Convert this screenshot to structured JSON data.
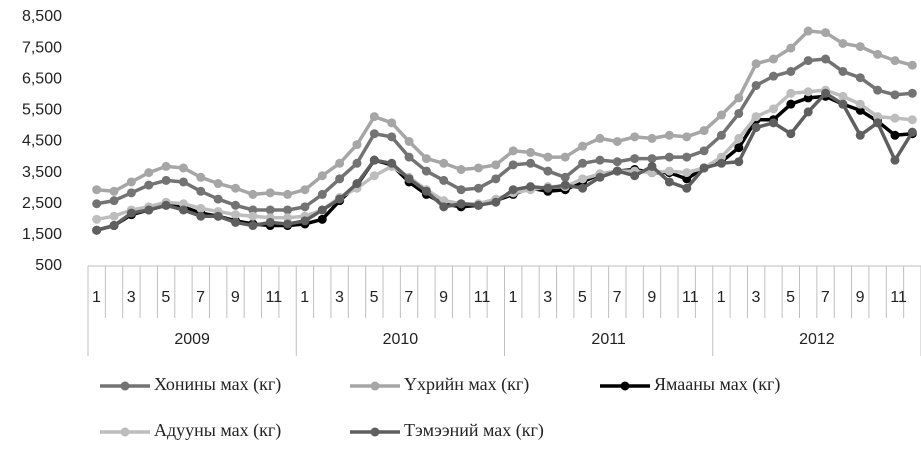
{
  "chart_data": {
    "type": "line",
    "categories": [
      "1",
      null,
      "3",
      null,
      "5",
      null,
      "7",
      null,
      "9",
      null,
      "11",
      null,
      "1",
      null,
      "3",
      null,
      "5",
      null,
      "7",
      null,
      "9",
      null,
      "11",
      null,
      "1",
      null,
      "3",
      null,
      "5",
      null,
      "7",
      null,
      "9",
      null,
      "11",
      null,
      "1",
      null,
      "3",
      null,
      "5",
      null,
      "7",
      null,
      "9",
      null,
      "11",
      null
    ],
    "groups": [
      "2009",
      "2010",
      "2011",
      "2012"
    ],
    "ylim": [
      500,
      8500
    ],
    "yticks": [
      500,
      {
        "value": 1500,
        "label": "1,500"
      },
      {
        "value": 2500,
        "label": "2,500"
      },
      {
        "value": 3500,
        "label": "3,500"
      },
      {
        "value": 4500,
        "label": "4,500"
      },
      {
        "value": 5500,
        "label": "5,500"
      },
      {
        "value": 6500,
        "label": "6,500"
      },
      {
        "value": 7500,
        "label": "7,500"
      },
      {
        "value": 8500,
        "label": "8,500"
      }
    ],
    "grid": false,
    "series": [
      {
        "name": "Хонины мах (кг)",
        "color": "#737373",
        "values": [
          2500,
          2600,
          2850,
          3100,
          3250,
          3200,
          2900,
          2650,
          2450,
          2300,
          2300,
          2300,
          2400,
          2800,
          3300,
          3800,
          4750,
          4650,
          4000,
          3550,
          3250,
          2950,
          3000,
          3300,
          3750,
          3800,
          3550,
          3350,
          3800,
          3900,
          3850,
          3950,
          3950,
          4000,
          4000,
          4200,
          4700,
          5400,
          6300,
          6600,
          6750,
          7100,
          7150,
          6750,
          6550,
          6150,
          6000,
          6050
        ]
      },
      {
        "name": "Үхрийн мах (кг)",
        "color": "#a6a6a6",
        "values": [
          2950,
          2900,
          3200,
          3500,
          3700,
          3650,
          3350,
          3150,
          3000,
          2800,
          2850,
          2800,
          2950,
          3400,
          3800,
          4400,
          5300,
          5100,
          4500,
          3950,
          3800,
          3600,
          3650,
          3750,
          4200,
          4150,
          4000,
          4000,
          4350,
          4600,
          4500,
          4650,
          4600,
          4700,
          4650,
          4850,
          5350,
          5900,
          7000,
          7150,
          7500,
          8050,
          8000,
          7650,
          7550,
          7300,
          7100,
          6950
        ]
      },
      {
        "name": "Ямааны мах (кг)",
        "color": "#000000",
        "values": [
          1650,
          1800,
          2150,
          2300,
          2450,
          2400,
          2200,
          2100,
          1950,
          1850,
          1800,
          1800,
          1850,
          2000,
          2600,
          3100,
          3900,
          3750,
          3200,
          2800,
          2500,
          2400,
          2450,
          2600,
          2800,
          3000,
          2900,
          2950,
          3200,
          3450,
          3550,
          3600,
          3500,
          3500,
          3300,
          3650,
          3850,
          4300,
          5200,
          5200,
          5700,
          5900,
          5950,
          5700,
          5500,
          5150,
          4700,
          4750
        ]
      },
      {
        "name": "Адууны мах (кг)",
        "color": "#bdbdbd",
        "values": [
          2000,
          2100,
          2300,
          2400,
          2550,
          2500,
          2350,
          2250,
          2150,
          2100,
          2050,
          2050,
          2100,
          2300,
          2700,
          3000,
          3400,
          3700,
          3350,
          2950,
          2600,
          2500,
          2500,
          2650,
          2850,
          2950,
          3050,
          3050,
          3300,
          3450,
          3550,
          3550,
          3500,
          3550,
          3500,
          3650,
          4000,
          4600,
          5300,
          5550,
          6050,
          6100,
          6150,
          5950,
          5700,
          5300,
          5250,
          5200
        ]
      },
      {
        "name": "Тэмээний мах (кг)",
        "color": "#5f5f5f",
        "values": [
          1650,
          1800,
          2200,
          2300,
          2450,
          2300,
          2100,
          2100,
          1900,
          1800,
          1900,
          1850,
          1950,
          2300,
          2650,
          3150,
          3900,
          3800,
          3300,
          2900,
          2400,
          2500,
          2450,
          2550,
          2950,
          3050,
          3000,
          3100,
          3000,
          3350,
          3550,
          3400,
          3700,
          3200,
          3000,
          3650,
          3800,
          3850,
          4950,
          5100,
          4750,
          5450,
          6050,
          5700,
          4700,
          5100,
          3900,
          4800
        ]
      }
    ]
  }
}
